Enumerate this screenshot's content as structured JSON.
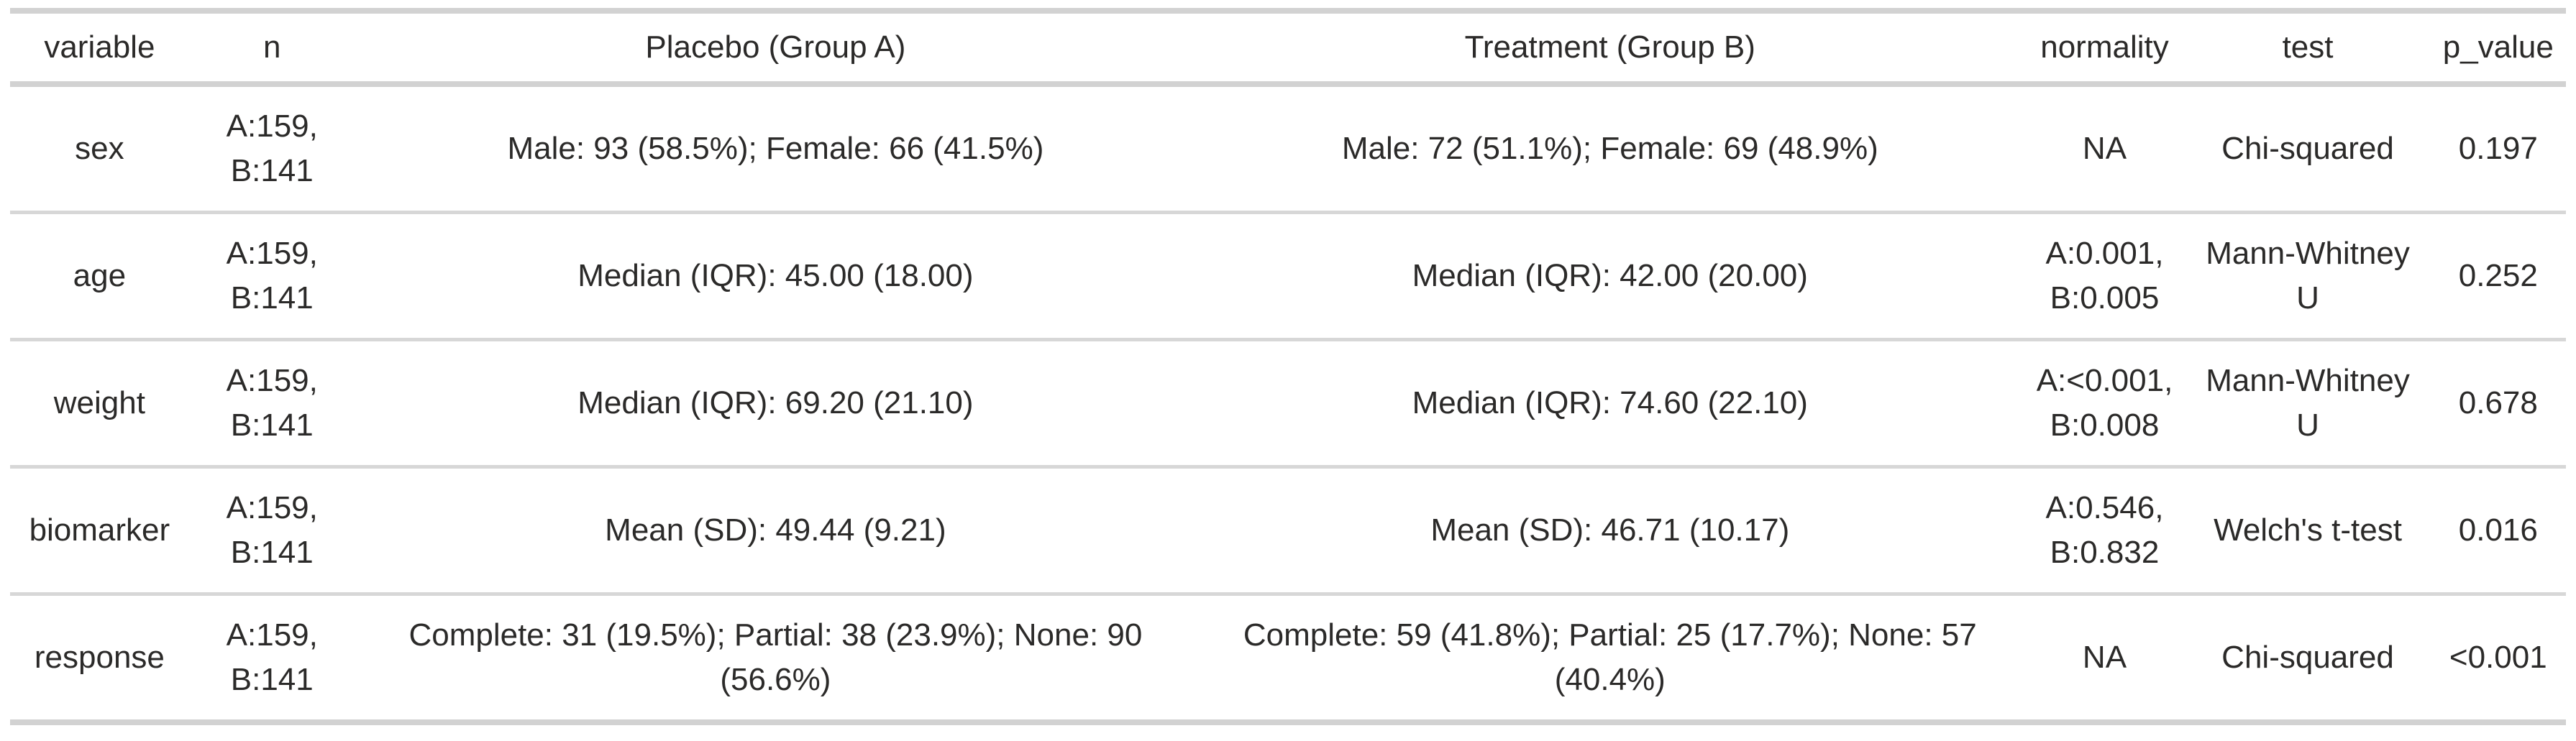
{
  "colors": {
    "background": "#ffffff",
    "text": "#2b2a29",
    "border_strong": "#d2d2d2",
    "border_light": "#d7d7d7"
  },
  "chart_data": {
    "type": "table",
    "title": "",
    "column_keys": [
      "variable",
      "n",
      "placebo",
      "treatment",
      "normality",
      "test",
      "p_value"
    ],
    "columns": [
      "variable",
      "n",
      "Placebo (Group A)",
      "Treatment (Group B)",
      "normality",
      "test",
      "p_value"
    ],
    "rows": [
      {
        "variable": "sex",
        "n": "A:159,\nB:141",
        "placebo": "Male: 93 (58.5%); Female: 66 (41.5%)",
        "treatment": "Male: 72 (51.1%); Female: 69 (48.9%)",
        "normality": "NA",
        "test": "Chi-squared",
        "p_value": "0.197"
      },
      {
        "variable": "age",
        "n": "A:159,\nB:141",
        "placebo": "Median (IQR): 45.00 (18.00)",
        "treatment": "Median (IQR): 42.00 (20.00)",
        "normality": "A:0.001,\nB:0.005",
        "test": "Mann-Whitney\nU",
        "p_value": "0.252"
      },
      {
        "variable": "weight",
        "n": "A:159,\nB:141",
        "placebo": "Median (IQR): 69.20 (21.10)",
        "treatment": "Median (IQR): 74.60 (22.10)",
        "normality": "A:<0.001,\nB:0.008",
        "test": "Mann-Whitney\nU",
        "p_value": "0.678"
      },
      {
        "variable": "biomarker",
        "n": "A:159,\nB:141",
        "placebo": "Mean (SD): 49.44 (9.21)",
        "treatment": "Mean (SD): 46.71 (10.17)",
        "normality": "A:0.546,\nB:0.832",
        "test": "Welch's t-test",
        "p_value": "0.016"
      },
      {
        "variable": "response",
        "n": "A:159,\nB:141",
        "placebo": "Complete: 31 (19.5%); Partial: 38 (23.9%); None: 90\n(56.6%)",
        "treatment": "Complete: 59 (41.8%); Partial: 25 (17.7%); None: 57\n(40.4%)",
        "normality": "NA",
        "test": "Chi-squared",
        "p_value": "<0.001"
      }
    ]
  }
}
